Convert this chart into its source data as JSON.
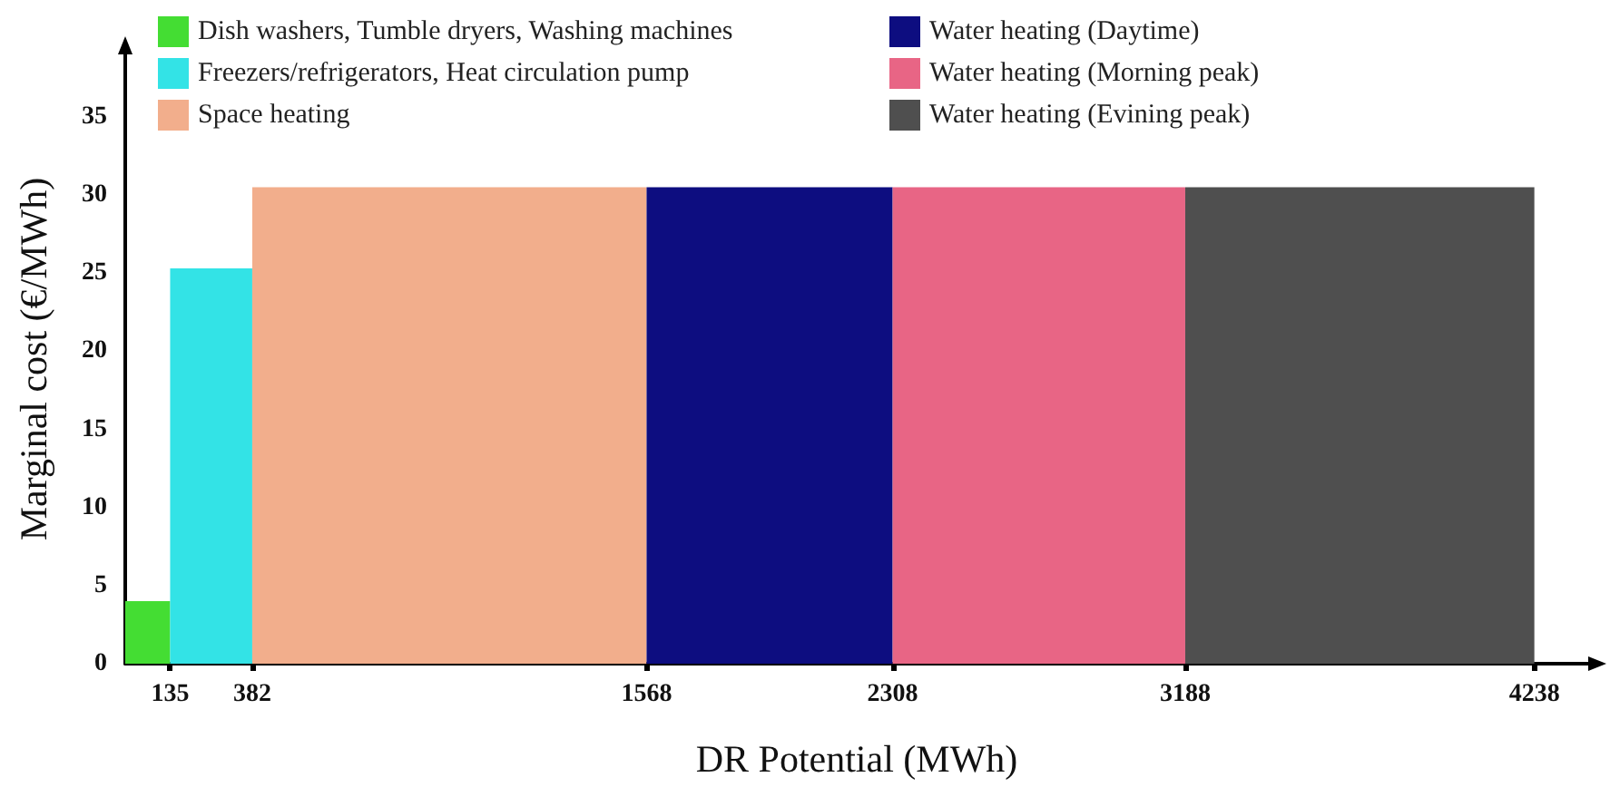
{
  "chart_data": {
    "type": "histogram",
    "xlabel": "DR Potential (MWh)",
    "ylabel": "Marginal cost (€/MWh)",
    "bins": [
      0,
      135,
      382,
      1568,
      2308,
      3188,
      4238
    ],
    "series": [
      {
        "name": "Dish washers, Tumble dryers, Washing machines",
        "color": "#44dd33",
        "values": [
          4,
          null,
          null,
          null,
          null,
          null
        ]
      },
      {
        "name": "Freezers/refrigerators, Heat circulation pump",
        "color": "#33e3e6",
        "values": [
          null,
          25.3,
          null,
          null,
          null,
          null
        ]
      },
      {
        "name": "Space heating",
        "color": "#f2ae8c",
        "values": [
          null,
          null,
          30.5,
          null,
          null,
          null
        ]
      },
      {
        "name": "Water heating (Daytime)",
        "color": "#0d0d80",
        "values": [
          null,
          null,
          null,
          30.5,
          null,
          null
        ]
      },
      {
        "name": "Water heating (Morning peak)",
        "color": "#e86585",
        "values": [
          null,
          null,
          null,
          null,
          30.5,
          null
        ]
      },
      {
        "name": "Water heating (Evining peak)",
        "color": "#4f4f4f",
        "values": [
          null,
          null,
          null,
          null,
          null,
          30.5
        ]
      }
    ],
    "xlim": [
      0,
      4400
    ],
    "xticks": [
      135,
      382,
      1568,
      2308,
      3188,
      4238
    ],
    "ylim": [
      0,
      39
    ],
    "yticks": [
      0,
      5,
      10,
      15,
      20,
      25,
      30,
      35
    ],
    "grid": false,
    "legend": "top"
  }
}
